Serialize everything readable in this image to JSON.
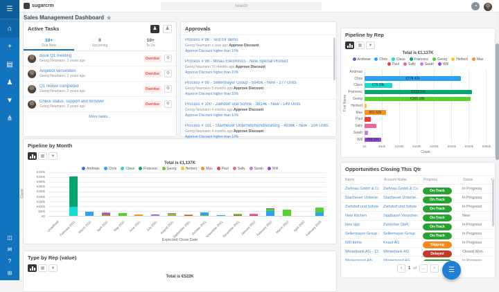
{
  "app": {
    "logo_text": "sugarcrm",
    "page_title": "Sales Management Dashboard",
    "favorite_star": "☆",
    "search_placeholder": "Search"
  },
  "sidebar": {
    "top_icons": [
      "menu",
      "home",
      "create",
      "calendar",
      "contacts",
      "filter",
      "pipeline"
    ],
    "bottom_icons": [
      "reports",
      "chat",
      "help",
      "web"
    ]
  },
  "colors": {
    "accent": "#1273bf",
    "link": "#3d87d0",
    "on_track": "#2aa233",
    "slipping": "#f6891e",
    "delayed": "#bf3a2b",
    "overdue_text": "#df4a3f",
    "overdue_bg": "#fdeceb",
    "reps": {
      "Andreas": "#4a63e0",
      "Chris": "#2ba3f5",
      "Claus": "#17dccc",
      "Francesc": "#07a571",
      "Georg": "#58d02f",
      "Herbert": "#f8c42a",
      "Max": "#f6921e",
      "Paul": "#ee3d35",
      "Sally": "#f0609e",
      "Sarah": "#c77ce0",
      "Will": "#8f49d6"
    }
  },
  "active_tasks": {
    "title": "Active Tasks",
    "tabs": [
      {
        "count": "10+",
        "label": "Due Now"
      },
      {
        "count": "0",
        "label": "Upcoming"
      },
      {
        "count": "10+",
        "label": "To Do"
      }
    ],
    "items": [
      {
        "title": "Book Q1 meeting",
        "meta": "Georg Neumann, 2 years ago",
        "badge": "Overdue"
      },
      {
        "title": "Angebot versenden",
        "meta": "Georg Neumann, 2 years ago",
        "badge": "Overdue"
      },
      {
        "title": "Q1 review completed",
        "meta": "Georg Neumann, 2 years ago",
        "badge": "Overdue"
      },
      {
        "title": "Check status, support and turnover",
        "meta": "Georg Neumann, 2 years ago",
        "badge": "Overdue"
      }
    ],
    "footer_link": "More tasks..."
  },
  "approvals": {
    "title": "Approvals",
    "items": [
      {
        "title": "Process # 96 - Test for demo",
        "user": "Georg Neumann",
        "time": "a year ago",
        "action": "Approve Discount",
        "desc": "Approve Discount higher than 10%"
      },
      {
        "title": "Process # 98 - Minau Electronics - New Special Product",
        "user": "Georg Neumann",
        "time": "10 months ago",
        "action": "Approve Discount",
        "desc": "Approve Discount higher than 10%"
      },
      {
        "title": "Process # 99 - Sellermayer Group - 5945€ - New - 277 Units",
        "user": "Georg Neumann",
        "time": "5 months ago",
        "action": "Approve Discount",
        "desc": "Approve Discount higher than 10%"
      },
      {
        "title": "Process # 100 - Ziehdorf und Söhne - 3814€ - New - 149 Units",
        "user": "Georg Neumann",
        "time": "4 months ago",
        "action": "Approve Discount",
        "desc": "Approve Discount higher than 10%"
      },
      {
        "title": "Process # 101 - Starrheuer Unternehmensberatung - 4936€ - New - 104 Units",
        "user": "Georg Neumann",
        "time": "4 months ago",
        "action": "Approve Discount",
        "desc": "Approve Discount higher than 10%"
      }
    ]
  },
  "chart_data": [
    {
      "name": "pipeline_by_rep",
      "type": "bar",
      "orientation": "horizontal",
      "title": "Pipeline by Rep",
      "total_label": "Total is €1,137K",
      "categories": [
        "Andreas",
        "Chris",
        "Claus",
        "Francesc",
        "Georg",
        "Herbert",
        "Max",
        "Paul",
        "Sally",
        "Sarah",
        "Will"
      ],
      "values": [
        0,
        278.42,
        79.39,
        310.74,
        305.18,
        5,
        61.62,
        19,
        33,
        10,
        48.18
      ],
      "bar_labels": [
        "",
        "€278.42k",
        "€79.39k",
        "€310.74k",
        "€305.18k",
        "",
        "€61.62k",
        "",
        "",
        "",
        "€48.18k"
      ],
      "xlabel": "Count",
      "ylabel": "First Name",
      "xlim": [
        0,
        350
      ],
      "x_ticks": [
        "€0",
        "€50k",
        "€100k",
        "€150k",
        "€200k",
        "€250k",
        "€300k",
        "€350k"
      ],
      "legend": [
        "Andreas",
        "Chris",
        "Claus",
        "Francesc",
        "Georg",
        "Herbert",
        "Max",
        "Paul",
        "Sally",
        "Sarah",
        "Will"
      ],
      "legend_position": "top"
    },
    {
      "name": "pipeline_by_month",
      "type": "stacked-bar",
      "title": "Pipeline by Month",
      "total_label": "Total is €1,137K",
      "categories": [
        "Undefined",
        "February 2021",
        "March 2021",
        "April 2021",
        "May 2021",
        "June 2021",
        "July 2021",
        "August 2021",
        "September 2021",
        "October 2021",
        "November 2021",
        "December 2021",
        "January 2022",
        "February 2022",
        "March 2022",
        "April 2022",
        "February 2023"
      ],
      "segments": [
        [],
        [
          {
            "rep": "Claus",
            "v": 95
          },
          {
            "rep": "Francesc",
            "v": 305
          }
        ],
        [
          {
            "rep": "Chris",
            "v": 45
          }
        ],
        [
          {
            "rep": "Georg",
            "v": 6
          },
          {
            "rep": "Paul",
            "v": 9
          },
          {
            "rep": "Sally",
            "v": 6
          },
          {
            "rep": "Will",
            "v": 10
          },
          {
            "rep": "Sarah",
            "v": 5
          }
        ],
        [
          {
            "rep": "Georg",
            "v": 30
          }
        ],
        [
          {
            "rep": "Max",
            "v": 14
          }
        ],
        [
          {
            "rep": "Sarah",
            "v": 8
          },
          {
            "rep": "Will",
            "v": 10
          }
        ],
        [
          {
            "rep": "Georg",
            "v": 6
          },
          {
            "rep": "Max",
            "v": 12
          },
          {
            "rep": "Chris",
            "v": 10
          }
        ],
        [
          {
            "rep": "Paul",
            "v": 9
          },
          {
            "rep": "Max",
            "v": 8
          }
        ],
        [
          {
            "rep": "Georg",
            "v": 5
          },
          {
            "rep": "Chris",
            "v": 28
          }
        ],
        [
          {
            "rep": "Chris",
            "v": 9
          }
        ],
        [
          {
            "rep": "Paul",
            "v": 10
          },
          {
            "rep": "Georg",
            "v": 11
          }
        ],
        [
          {
            "rep": "Paul",
            "v": 10
          },
          {
            "rep": "Sally",
            "v": 11
          }
        ],
        [
          {
            "rep": "Chris",
            "v": 52
          },
          {
            "rep": "Georg",
            "v": 16
          },
          {
            "rep": "Will",
            "v": 8
          },
          {
            "rep": "Sally",
            "v": 3
          }
        ],
        [
          {
            "rep": "Georg",
            "v": 64
          }
        ],
        [],
        [
          {
            "rep": "Chris",
            "v": 38
          },
          {
            "rep": "Georg",
            "v": 50
          }
        ]
      ],
      "ylim": [
        0,
        450
      ],
      "y_ticks": [
        "€450k",
        "€400k",
        "€350k",
        "€300k",
        "€250k",
        "€200k",
        "€150k",
        "€100k",
        "€50k",
        "€0"
      ],
      "xlabel": "Expected Close Date",
      "ylabel": "Count",
      "legend": [
        "Andreas",
        "Chris",
        "Claus",
        "Francesc",
        "Georg",
        "Herbert",
        "Max",
        "Paul",
        "Sally",
        "Sarah",
        "Will"
      ],
      "legend_position": "top"
    },
    {
      "name": "type_by_rep",
      "type": "bar",
      "title": "Type by Rep (value)",
      "total_label": "Total is €522K"
    }
  ],
  "opportunities": {
    "title": "Opportunities Closing This Qtr",
    "columns": [
      "Name",
      "Account Name",
      "Progress",
      "Status",
      "Li..."
    ],
    "rows": [
      {
        "name": "Ziehnau Gmbh & Co...",
        "account": "Ziehnau Gmbh & Co...",
        "progress": "On-Track",
        "status": "In Progress"
      },
      {
        "name": "Starrheuer Unterne...",
        "account": "Starrheuer Unterne...",
        "progress": "On-Track",
        "status": "In Progress"
      },
      {
        "name": "Ziehdorf und Söhne...",
        "account": "Ziehdorf und Söhne",
        "progress": "On-Track",
        "status": "In Progress"
      },
      {
        "name": "New Kitchen",
        "account": "Sippbaum Versicher...",
        "progress": "On-Track",
        "status": "New"
      },
      {
        "name": "new opp",
        "account": "Zubricher GbR",
        "progress": "On-Track",
        "status": "In Progress"
      },
      {
        "name": "Sellermayer Group -...",
        "account": "Sellermayer Group",
        "progress": "On-Track",
        "status": "In Progress"
      },
      {
        "name": "500 items",
        "account": "Knauf AG",
        "progress": "Slipping",
        "status": "In Progress"
      },
      {
        "name": "Winterbank AG - 12...",
        "account": "Winterbank AG",
        "progress": "Delayed",
        "status": "Closed Won"
      },
      {
        "name": "Wintermond Alb...",
        "account": "Wintermond AG",
        "progress": "On-Track",
        "status": "In Progress"
      }
    ],
    "pagination": {
      "prev": "‹",
      "page": "1",
      "of": "of",
      "ellipsis": "...",
      "next": "›"
    }
  }
}
